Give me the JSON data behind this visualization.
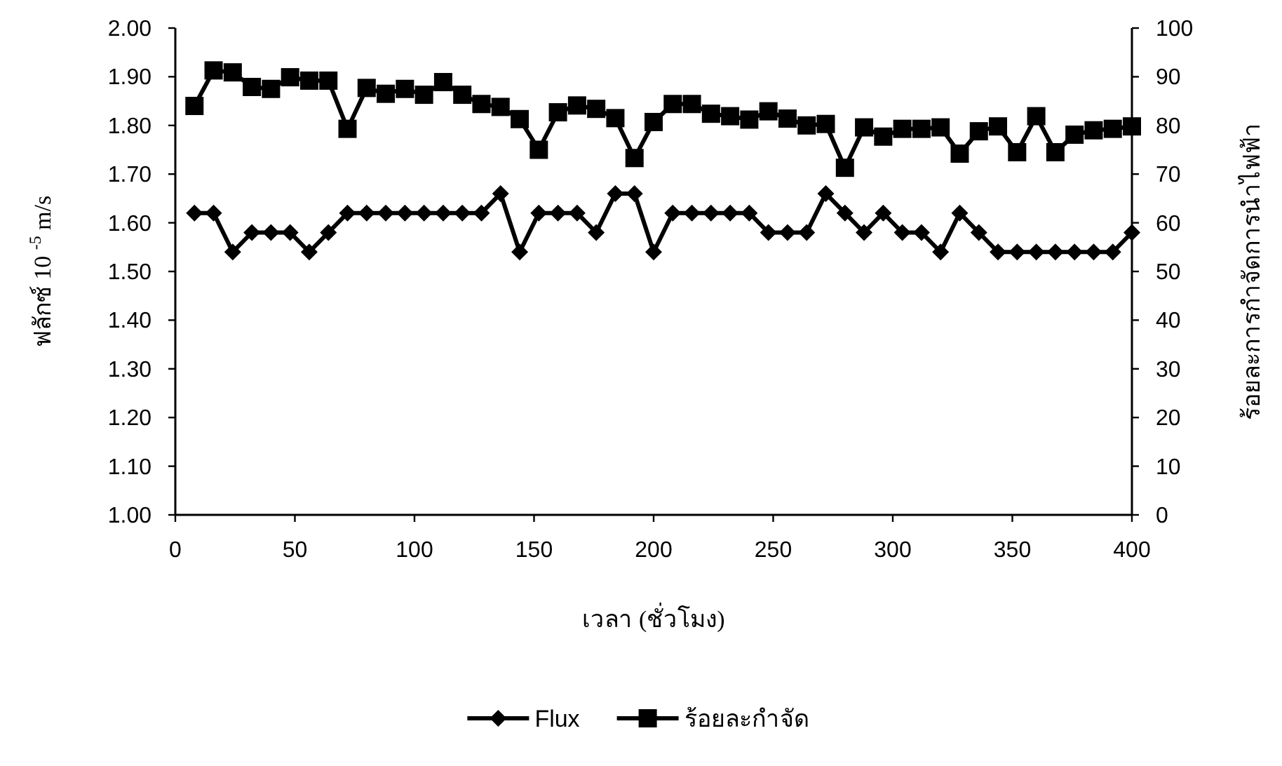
{
  "chart_data": {
    "type": "line",
    "xlabel": "เวลา (ชั่วโมง)",
    "ylabel": "ฟลักซ์ 10 $^{-5}$ m/s",
    "y2label": "ร้อยละการกำจัดการนำไฟฟ้า",
    "x": [
      8,
      16,
      24,
      32,
      40,
      48,
      56,
      64,
      72,
      80,
      88,
      96,
      104,
      112,
      120,
      128,
      136,
      144,
      152,
      160,
      168,
      176,
      184,
      192,
      200,
      208,
      216,
      224,
      232,
      240,
      248,
      256,
      264,
      272,
      280,
      288,
      296,
      304,
      312,
      320,
      328,
      336,
      344,
      352,
      360,
      368,
      376,
      384,
      392,
      400
    ],
    "series": [
      {
        "name": "Flux",
        "color": "#000000",
        "marker": "diamond",
        "values": [
          1.62,
          1.62,
          1.54,
          1.58,
          1.58,
          1.58,
          1.54,
          1.58,
          1.62,
          1.62,
          1.62,
          1.62,
          1.62,
          1.62,
          1.62,
          1.62,
          1.66,
          1.54,
          1.62,
          1.62,
          1.62,
          1.58,
          1.66,
          1.66,
          1.54,
          1.62,
          1.62,
          1.62,
          1.62,
          1.62,
          1.58,
          1.58,
          1.58,
          1.66,
          1.62,
          1.58,
          1.62,
          1.58,
          1.58,
          1.54,
          1.62,
          1.58,
          1.54,
          1.54,
          1.54,
          1.54,
          1.54,
          1.54,
          1.54,
          1.58
        ]
      },
      {
        "name": "ร้อยละกำจัด",
        "color": "#000000",
        "marker": "square",
        "axis": "y2",
        "values": [
          84,
          91.3,
          90.9,
          87.9,
          87.5,
          89.9,
          89.2,
          89.2,
          79.3,
          87.7,
          86.5,
          87.5,
          86.3,
          88.9,
          86.3,
          84.4,
          83.8,
          81.3,
          75,
          82.7,
          84.1,
          83.4,
          81.5,
          73.3,
          80.7,
          84.4,
          84.4,
          82.4,
          81.9,
          81.2,
          82.9,
          81.4,
          80,
          80.3,
          71.3,
          79.6,
          77.7,
          79.3,
          79.3,
          79.6,
          74.2,
          78.8,
          79.8,
          74.5,
          81.9,
          74.5,
          78.1,
          79,
          79.3,
          79.8
        ]
      }
    ],
    "xlim": [
      0,
      400
    ],
    "xticks": [
      0,
      50,
      100,
      150,
      200,
      250,
      300,
      350,
      400
    ],
    "ylim": [
      1,
      2
    ],
    "yticks": [
      {
        "value": 1,
        "label": "1.00"
      },
      {
        "value": 1.1,
        "label": "1.10"
      },
      {
        "value": 1.2,
        "label": "1.20"
      },
      {
        "value": 1.3,
        "label": "1.30"
      },
      {
        "value": 1.4,
        "label": "1.40"
      },
      {
        "value": 1.5,
        "label": "1.50"
      },
      {
        "value": 1.6,
        "label": "1.60"
      },
      {
        "value": 1.7,
        "label": "1.70"
      },
      {
        "value": 1.8,
        "label": "1.80"
      },
      {
        "value": 1.9,
        "label": "1.90"
      },
      {
        "value": 2,
        "label": "2.00"
      }
    ],
    "y2lim": [
      0,
      100
    ],
    "y2ticks": [
      0,
      10,
      20,
      30,
      40,
      50,
      60,
      70,
      80,
      90,
      100
    ],
    "legend": "bottom"
  }
}
